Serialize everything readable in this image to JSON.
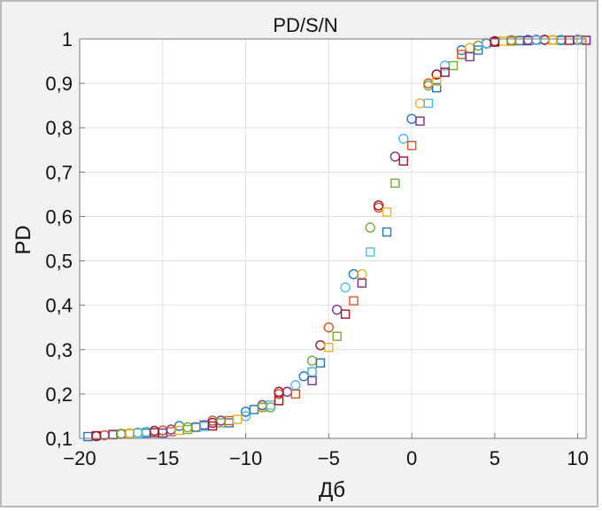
{
  "chart_data": {
    "type": "scatter",
    "title": "PD/S/N",
    "xlabel": "Дб",
    "ylabel": "PD",
    "xlim": [
      -20,
      10.5
    ],
    "ylim": [
      0.1,
      1.0
    ],
    "x_ticks": [
      "−20",
      "−15",
      "−10",
      "−5",
      "0",
      "5",
      "10"
    ],
    "y_ticks": [
      "0,1",
      "0,2",
      "0,3",
      "0,4",
      "0,5",
      "0,6",
      "0,7",
      "0,8",
      "0,9",
      "1"
    ],
    "grid": true,
    "series": [
      {
        "marker": "circle",
        "color": "#1f77bd",
        "points": [
          [
            -14,
            0.128
          ],
          [
            -10,
            0.16
          ],
          [
            -6.5,
            0.24
          ],
          [
            -3.5,
            0.47
          ],
          [
            0,
            0.82
          ],
          [
            3,
            0.975
          ],
          [
            7,
            0.998
          ],
          [
            9,
            0.998
          ]
        ]
      },
      {
        "marker": "circle",
        "color": "#d9531e",
        "points": [
          [
            -18.5,
            0.107
          ],
          [
            -15,
            0.118
          ],
          [
            -12,
            0.14
          ],
          [
            -8,
            0.2
          ],
          [
            -5,
            0.35
          ],
          [
            -2,
            0.62
          ],
          [
            1,
            0.9
          ],
          [
            4,
            0.985
          ],
          [
            6,
            0.997
          ],
          [
            10,
            0.998
          ]
        ]
      },
      {
        "marker": "circle",
        "color": "#edb120",
        "points": [
          [
            -17,
            0.112
          ],
          [
            -13,
            0.126
          ],
          [
            -9,
            0.17
          ],
          [
            -6,
            0.25
          ],
          [
            -3,
            0.47
          ],
          [
            0.5,
            0.855
          ],
          [
            3.5,
            0.98
          ],
          [
            6.5,
            0.997
          ],
          [
            8.5,
            0.998
          ],
          [
            10.2,
            0.998
          ]
        ]
      },
      {
        "marker": "circle",
        "color": "#7e2f8e",
        "points": [
          [
            -17.5,
            0.11
          ],
          [
            -14.5,
            0.12
          ],
          [
            -11.5,
            0.14
          ],
          [
            -9,
            0.175
          ],
          [
            -7.5,
            0.205
          ],
          [
            -4.5,
            0.39
          ],
          [
            -1,
            0.735
          ],
          [
            1.5,
            0.92
          ],
          [
            4.5,
            0.99
          ],
          [
            7.5,
            0.998
          ],
          [
            10,
            0.998
          ]
        ]
      },
      {
        "marker": "circle",
        "color": "#77ac30",
        "points": [
          [
            -16.5,
            0.113
          ],
          [
            -13.5,
            0.125
          ],
          [
            -8.5,
            0.17
          ],
          [
            -6,
            0.275
          ],
          [
            -2.5,
            0.575
          ],
          [
            1,
            0.895
          ],
          [
            4,
            0.985
          ],
          [
            8,
            0.998
          ]
        ]
      },
      {
        "marker": "circle",
        "color": "#4dbeee",
        "points": [
          [
            -16,
            0.115
          ],
          [
            -12.5,
            0.13
          ],
          [
            -10,
            0.15
          ],
          [
            -7,
            0.22
          ],
          [
            -4,
            0.44
          ],
          [
            -0.5,
            0.775
          ],
          [
            2,
            0.94
          ],
          [
            5,
            0.993
          ],
          [
            9,
            0.998
          ]
        ]
      },
      {
        "marker": "circle",
        "color": "#a2142f",
        "points": [
          [
            -19,
            0.105
          ],
          [
            -15.5,
            0.117
          ],
          [
            -12,
            0.135
          ],
          [
            -8,
            0.205
          ],
          [
            -5.5,
            0.31
          ],
          [
            -2,
            0.625
          ],
          [
            1.5,
            0.92
          ],
          [
            5,
            0.995
          ],
          [
            8,
            0.998
          ]
        ]
      },
      {
        "marker": "square",
        "color": "#1f77bd",
        "points": [
          [
            -19.5,
            0.104
          ],
          [
            -16,
            0.112
          ],
          [
            -13,
            0.125
          ],
          [
            -11,
            0.135
          ],
          [
            -9.5,
            0.165
          ],
          [
            -5.5,
            0.27
          ],
          [
            -1.5,
            0.565
          ],
          [
            1.5,
            0.89
          ],
          [
            4,
            0.975
          ],
          [
            6.5,
            0.996
          ],
          [
            9,
            0.997
          ]
        ]
      },
      {
        "marker": "square",
        "color": "#d9531e",
        "points": [
          [
            -18,
            0.108
          ],
          [
            -14.5,
            0.115
          ],
          [
            -11,
            0.14
          ],
          [
            -7,
            0.2
          ],
          [
            -3.5,
            0.41
          ],
          [
            0,
            0.76
          ],
          [
            3,
            0.965
          ],
          [
            6,
            0.996
          ],
          [
            10.5,
            0.997
          ]
        ]
      },
      {
        "marker": "square",
        "color": "#edb120",
        "points": [
          [
            -17,
            0.11
          ],
          [
            -14,
            0.118
          ],
          [
            -10.5,
            0.143
          ],
          [
            -8,
            0.185
          ],
          [
            -5,
            0.305
          ],
          [
            -1.5,
            0.61
          ],
          [
            1.5,
            0.905
          ],
          [
            5.5,
            0.995
          ],
          [
            8.5,
            0.997
          ]
        ]
      },
      {
        "marker": "square",
        "color": "#7e2f8e",
        "points": [
          [
            -18,
            0.109
          ],
          [
            -15,
            0.112
          ],
          [
            -12.5,
            0.13
          ],
          [
            -6,
            0.23
          ],
          [
            -3,
            0.45
          ],
          [
            0.5,
            0.815
          ],
          [
            3.5,
            0.96
          ],
          [
            7,
            0.996
          ],
          [
            10.5,
            0.997
          ]
        ]
      },
      {
        "marker": "square",
        "color": "#77ac30",
        "points": [
          [
            -17.5,
            0.11
          ],
          [
            -13.5,
            0.12
          ],
          [
            -11.5,
            0.135
          ],
          [
            -9,
            0.17
          ],
          [
            -4.5,
            0.33
          ],
          [
            -1,
            0.675
          ],
          [
            2.5,
            0.94
          ],
          [
            6,
            0.995
          ]
        ]
      },
      {
        "marker": "square",
        "color": "#4dbeee",
        "points": [
          [
            -16.5,
            0.112
          ],
          [
            -12.5,
            0.127
          ],
          [
            -8.5,
            0.175
          ],
          [
            -6,
            0.25
          ],
          [
            -2.5,
            0.52
          ],
          [
            1,
            0.855
          ],
          [
            4.5,
            0.99
          ],
          [
            7.5,
            0.997
          ],
          [
            10,
            0.997
          ]
        ]
      },
      {
        "marker": "square",
        "color": "#a2142f",
        "points": [
          [
            -19,
            0.106
          ],
          [
            -15.5,
            0.113
          ],
          [
            -12,
            0.128
          ],
          [
            -8,
            0.185
          ],
          [
            -4,
            0.38
          ],
          [
            -0.5,
            0.725
          ],
          [
            2,
            0.925
          ],
          [
            5,
            0.993
          ],
          [
            9.5,
            0.997
          ]
        ]
      }
    ]
  }
}
